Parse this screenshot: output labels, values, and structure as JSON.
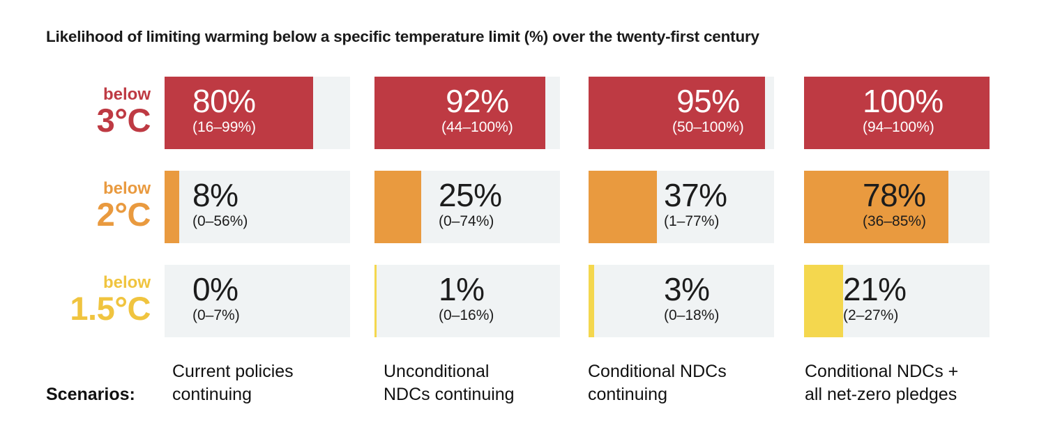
{
  "chart_data": {
    "type": "table",
    "title": "Likelihood of limiting warming below a specific temperature limit (%) over the twenty-first century",
    "scenario_heading": "Scenarios:",
    "scenarios": [
      [
        "Current policies",
        "continuing"
      ],
      [
        "Unconditional",
        "NDCs continuing"
      ],
      [
        "Conditional NDCs",
        "continuing"
      ],
      [
        "Conditional NDCs +",
        "all net-zero pledges"
      ]
    ],
    "rows": [
      {
        "prefix": "below",
        "limit": "3°C",
        "color": "#be3a43",
        "label_color": "#be3a43",
        "text_color": "#ffffff",
        "cells": [
          {
            "value": 80,
            "label": "80%",
            "range": "(16–99%)"
          },
          {
            "value": 92,
            "label": "92%",
            "range": "(44–100%)"
          },
          {
            "value": 95,
            "label": "95%",
            "range": "(50–100%)"
          },
          {
            "value": 100,
            "label": "100%",
            "range": "(94–100%)"
          }
        ]
      },
      {
        "prefix": "below",
        "limit": "2°C",
        "color": "#e99a3f",
        "label_color": "#e99a3f",
        "text_color": "#1c1c1c",
        "cells": [
          {
            "value": 8,
            "label": "8%",
            "range": "(0–56%)"
          },
          {
            "value": 25,
            "label": "25%",
            "range": "(0–74%)"
          },
          {
            "value": 37,
            "label": "37%",
            "range": "(1–77%)"
          },
          {
            "value": 78,
            "label": "78%",
            "range": "(36–85%)"
          }
        ]
      },
      {
        "prefix": "below",
        "limit": "1.5°C",
        "color": "#f4d74e",
        "label_color": "#f0c43f",
        "text_color": "#1c1c1c",
        "cells": [
          {
            "value": 0,
            "label": "0%",
            "range": "(0–7%)"
          },
          {
            "value": 1,
            "label": "1%",
            "range": "(0–16%)"
          },
          {
            "value": 3,
            "label": "3%",
            "range": "(0–18%)"
          },
          {
            "value": 21,
            "label": "21%",
            "range": "(2–27%)"
          }
        ]
      }
    ]
  }
}
